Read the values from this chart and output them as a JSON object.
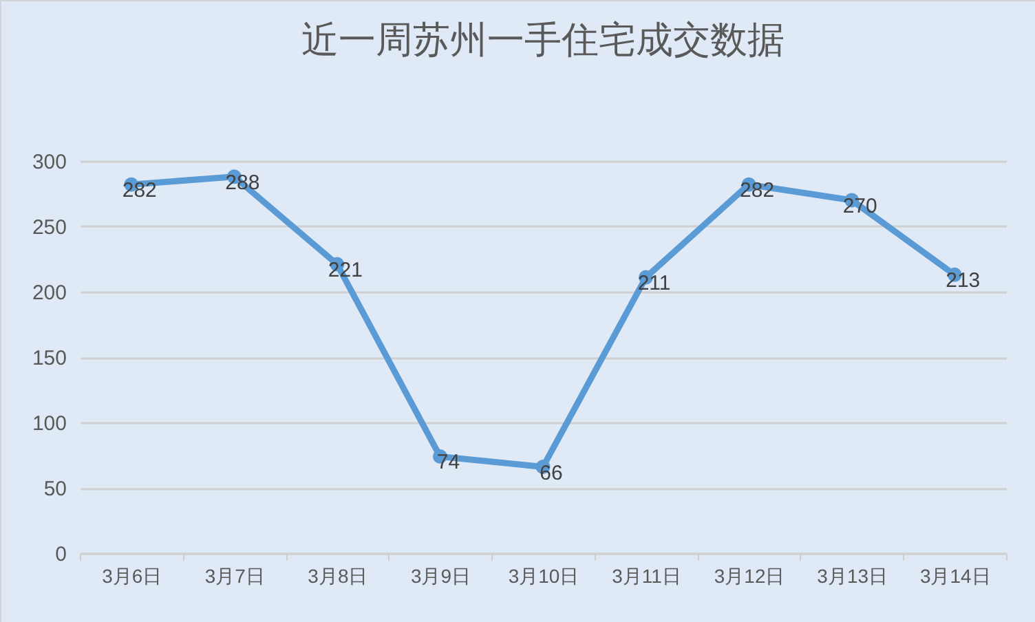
{
  "chart_data": {
    "type": "line",
    "title": "近一周苏州一手住宅成交数据",
    "categories": [
      "3月6日",
      "3月7日",
      "3月8日",
      "3月9日",
      "3月10日",
      "3月11日",
      "3月12日",
      "3月13日",
      "3月14日"
    ],
    "series": [
      {
        "color": "#5b9bd5",
        "values": [
          282,
          288,
          221,
          74,
          66,
          211,
          282,
          270,
          213
        ]
      }
    ],
    "ylim": [
      0,
      300
    ],
    "yticks": [
      0,
      50,
      100,
      150,
      200,
      250,
      300
    ],
    "grid": "y",
    "marker": "circle",
    "line_style": "solid",
    "data_labels": true
  }
}
